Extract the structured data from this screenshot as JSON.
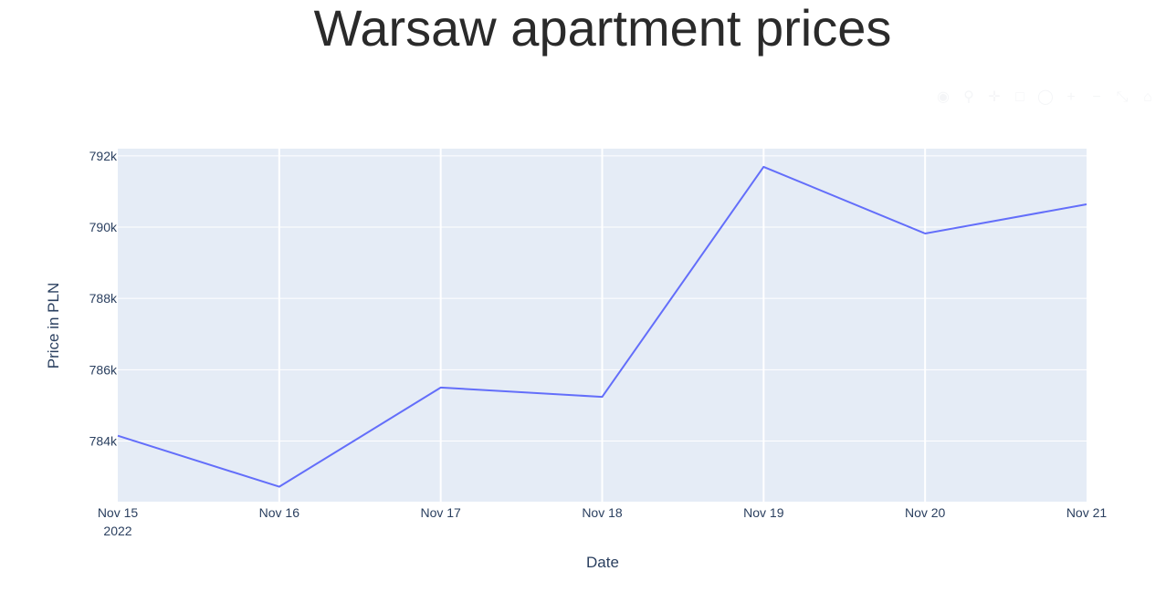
{
  "chart_data": {
    "type": "line",
    "title": "Warsaw apartment prices",
    "xlabel": "Date",
    "ylabel": "Price in PLN",
    "x": [
      "2022-11-15",
      "2022-11-16",
      "2022-11-17",
      "2022-11-18",
      "2022-11-19",
      "2022-11-20",
      "2022-11-21"
    ],
    "x_tick_labels": [
      "Nov 15",
      "Nov 16",
      "Nov 17",
      "Nov 18",
      "Nov 19",
      "Nov 20",
      "Nov 21"
    ],
    "x_tick_year": "2022",
    "y_ticks": [
      784000,
      786000,
      788000,
      790000,
      792000
    ],
    "y_tick_labels": [
      "784k",
      "786k",
      "788k",
      "790k",
      "792k"
    ],
    "ylim": [
      782300,
      792200
    ],
    "series": [
      {
        "values": [
          784150,
          782720,
          785500,
          785240,
          791690,
          789820,
          790640
        ],
        "color": "#636efa"
      }
    ],
    "grid": true,
    "colors": {
      "plot_background": "#e5ecf6",
      "grid": "#ffffff",
      "text": "#2a3f5f"
    }
  },
  "modebar_icons": [
    "camera-icon",
    "zoom-icon",
    "pan-icon",
    "box-select-icon",
    "lasso-icon",
    "zoom-in-icon",
    "zoom-out-icon",
    "autoscale-icon",
    "reset-axes-icon",
    "plotly-logo-icon"
  ]
}
